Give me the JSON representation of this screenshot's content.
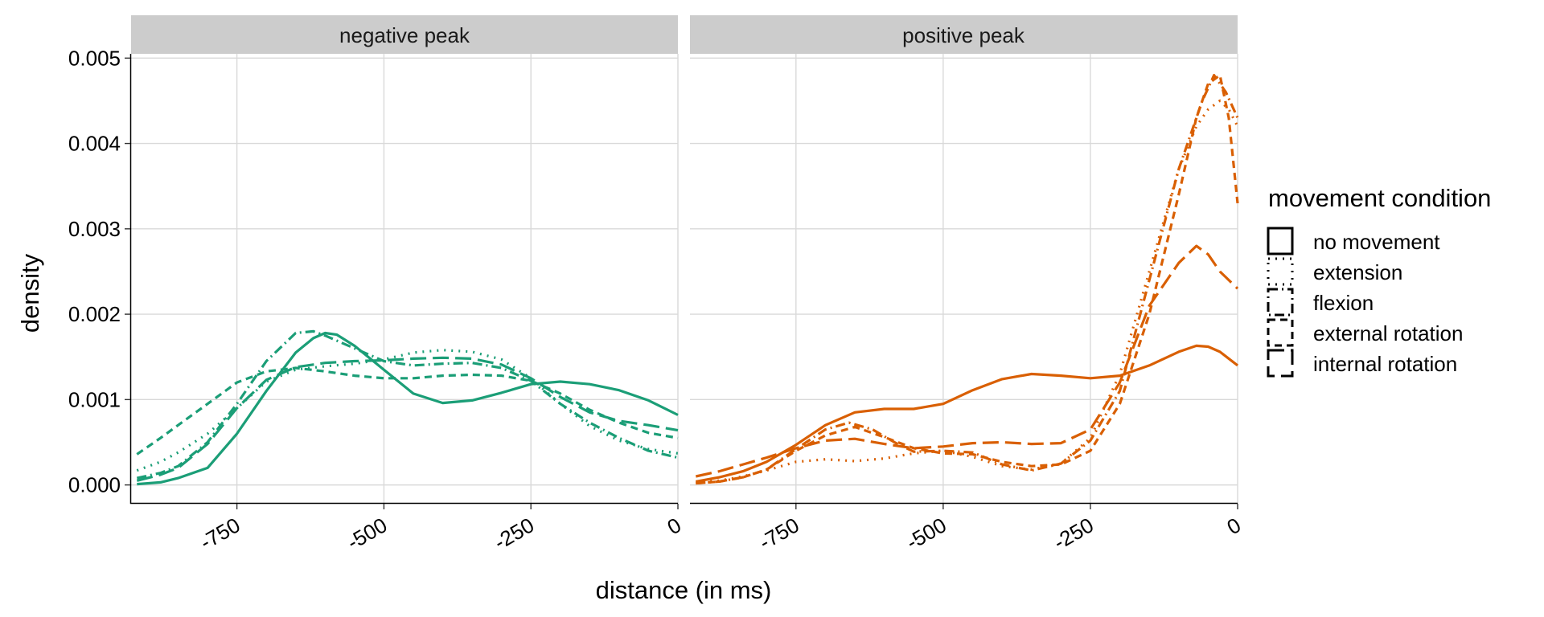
{
  "chart_data": {
    "type": "line",
    "xlabel": "distance (in ms)",
    "ylabel": "density",
    "xlim": [
      -930,
      0
    ],
    "ylim": [
      -0.00022,
      0.00505
    ],
    "x_ticks": [
      -750,
      -500,
      -250,
      0
    ],
    "x_tick_labels": [
      "-750",
      "-500",
      "-250",
      "0"
    ],
    "y_ticks": [
      0,
      0.001,
      0.002,
      0.003,
      0.004,
      0.005
    ],
    "y_tick_labels": [
      "0.000",
      "0.001",
      "0.002",
      "0.003",
      "0.004",
      "0.005"
    ],
    "grid": true,
    "legend": {
      "title": "movement condition",
      "placement": "right",
      "entries": [
        "no movement",
        "extension",
        "flexion",
        "external rotation",
        "internal rotation"
      ]
    },
    "facets": [
      {
        "label": "negative peak",
        "color": "#1b9e77",
        "series": [
          {
            "name": "no movement",
            "x": [
              -920,
              -880,
              -850,
              -800,
              -750,
              -700,
              -650,
              -620,
              -600,
              -580,
              -550,
              -500,
              -450,
              -400,
              -350,
              -300,
              -250,
              -200,
              -150,
              -100,
              -50,
              0
            ],
            "y": [
              1e-05,
              3e-05,
              8e-05,
              0.0002,
              0.0006,
              0.0011,
              0.00155,
              0.00172,
              0.00178,
              0.00176,
              0.00163,
              0.00135,
              0.00107,
              0.00096,
              0.00099,
              0.00108,
              0.00118,
              0.00121,
              0.00118,
              0.00111,
              0.00099,
              0.00082
            ]
          },
          {
            "name": "extension",
            "x": [
              -920,
              -880,
              -850,
              -800,
              -750,
              -700,
              -650,
              -600,
              -550,
              -500,
              -450,
              -400,
              -350,
              -300,
              -250,
              -200,
              -150,
              -100,
              -50,
              0
            ],
            "y": [
              0.00017,
              0.00027,
              0.00038,
              0.0006,
              0.0009,
              0.00121,
              0.00135,
              0.00139,
              0.00142,
              0.00147,
              0.00155,
              0.00158,
              0.00156,
              0.00147,
              0.00125,
              0.00095,
              0.00069,
              0.00052,
              0.00042,
              0.00037
            ]
          },
          {
            "name": "flexion",
            "x": [
              -920,
              -880,
              -850,
              -800,
              -750,
              -700,
              -650,
              -620,
              -600,
              -550,
              -500,
              -450,
              -400,
              -350,
              -300,
              -250,
              -200,
              -150,
              -100,
              -50,
              0
            ],
            "y": [
              8e-05,
              0.00014,
              0.00022,
              0.0005,
              0.00095,
              0.00145,
              0.00178,
              0.0018,
              0.00175,
              0.0016,
              0.00145,
              0.0014,
              0.00142,
              0.00143,
              0.00137,
              0.00122,
              0.00095,
              0.00073,
              0.00055,
              0.0004,
              0.00032
            ]
          },
          {
            "name": "external rotation",
            "x": [
              -920,
              -880,
              -850,
              -800,
              -750,
              -700,
              -650,
              -600,
              -550,
              -500,
              -450,
              -400,
              -350,
              -300,
              -250,
              -200,
              -150,
              -100,
              -50,
              0
            ],
            "y": [
              0.00036,
              0.00055,
              0.0007,
              0.00095,
              0.0012,
              0.00133,
              0.00137,
              0.00133,
              0.00128,
              0.00125,
              0.00125,
              0.00128,
              0.00129,
              0.00128,
              0.00122,
              0.00107,
              0.00088,
              0.00073,
              0.00061,
              0.00055
            ]
          },
          {
            "name": "internal rotation",
            "x": [
              -920,
              -880,
              -850,
              -800,
              -750,
              -700,
              -650,
              -600,
              -550,
              -500,
              -450,
              -400,
              -350,
              -300,
              -250,
              -200,
              -150,
              -100,
              -50,
              0
            ],
            "y": [
              5e-05,
              0.00012,
              0.0002,
              0.00048,
              0.0009,
              0.00123,
              0.00138,
              0.00143,
              0.00145,
              0.00146,
              0.00148,
              0.00149,
              0.00148,
              0.00141,
              0.00125,
              0.00103,
              0.00085,
              0.00075,
              0.0007,
              0.00064
            ]
          }
        ]
      },
      {
        "label": "positive peak",
        "color": "#d95f02",
        "series": [
          {
            "name": "no movement",
            "x": [
              -920,
              -880,
              -840,
              -800,
              -750,
              -700,
              -650,
              -600,
              -550,
              -500,
              -450,
              -400,
              -350,
              -300,
              -250,
              -200,
              -150,
              -100,
              -70,
              -50,
              -30,
              0
            ],
            "y": [
              4e-05,
              9e-05,
              0.00016,
              0.00027,
              0.00047,
              0.0007,
              0.00085,
              0.00089,
              0.00089,
              0.00095,
              0.00111,
              0.00124,
              0.0013,
              0.00128,
              0.00125,
              0.00128,
              0.0014,
              0.00156,
              0.00163,
              0.00162,
              0.00156,
              0.0014
            ]
          },
          {
            "name": "extension",
            "x": [
              -920,
              -880,
              -840,
              -800,
              -750,
              -700,
              -650,
              -600,
              -550,
              -500,
              -450,
              -400,
              -350,
              -300,
              -250,
              -200,
              -150,
              -100,
              -70,
              -50,
              -30,
              -15,
              0
            ],
            "y": [
              3e-05,
              5e-05,
              0.0001,
              0.00017,
              0.00027,
              0.0003,
              0.00028,
              0.00031,
              0.00037,
              0.0004,
              0.00033,
              0.00022,
              0.00018,
              0.00025,
              0.00055,
              0.0013,
              0.0025,
              0.0037,
              0.0042,
              0.0044,
              0.0045,
              0.0044,
              0.0042
            ]
          },
          {
            "name": "flexion",
            "x": [
              -920,
              -880,
              -840,
              -800,
              -750,
              -700,
              -660,
              -620,
              -580,
              -550,
              -500,
              -450,
              -400,
              -350,
              -300,
              -250,
              -200,
              -150,
              -100,
              -60,
              -40,
              -20,
              0
            ],
            "y": [
              2e-05,
              4e-05,
              9e-05,
              0.00018,
              0.00042,
              0.00065,
              0.00073,
              0.00065,
              0.00049,
              0.00039,
              0.0004,
              0.00038,
              0.00024,
              0.00017,
              0.00025,
              0.00052,
              0.0011,
              0.0024,
              0.0037,
              0.0045,
              0.0048,
              0.0046,
              0.0043
            ]
          },
          {
            "name": "external rotation",
            "x": [
              -920,
              -880,
              -840,
              -800,
              -750,
              -700,
              -650,
              -600,
              -550,
              -500,
              -450,
              -400,
              -350,
              -300,
              -250,
              -200,
              -150,
              -100,
              -70,
              -50,
              -30,
              -15,
              0
            ],
            "y": [
              2e-05,
              4e-05,
              9e-05,
              0.00018,
              0.0004,
              0.00058,
              0.00068,
              0.00056,
              0.00043,
              0.00037,
              0.00036,
              0.00027,
              0.00022,
              0.00024,
              0.0004,
              0.00095,
              0.002,
              0.0034,
              0.0043,
              0.0047,
              0.0048,
              0.0043,
              0.0033
            ]
          },
          {
            "name": "internal rotation",
            "x": [
              -920,
              -880,
              -840,
              -800,
              -750,
              -700,
              -650,
              -600,
              -550,
              -500,
              -450,
              -400,
              -350,
              -300,
              -250,
              -200,
              -150,
              -100,
              -70,
              -50,
              -30,
              -15,
              0
            ],
            "y": [
              0.0001,
              0.00016,
              0.00024,
              0.00032,
              0.00043,
              0.00052,
              0.00054,
              0.00048,
              0.00043,
              0.00045,
              0.00049,
              0.0005,
              0.00048,
              0.00049,
              0.00065,
              0.0012,
              0.0021,
              0.0026,
              0.0028,
              0.0027,
              0.0025,
              0.0024,
              0.0023
            ]
          }
        ]
      }
    ]
  },
  "line_styles": {
    "no movement": "",
    "extension": "2 7",
    "flexion": "12 5 2 5",
    "external rotation": "9 6",
    "internal rotation": "20 8"
  }
}
